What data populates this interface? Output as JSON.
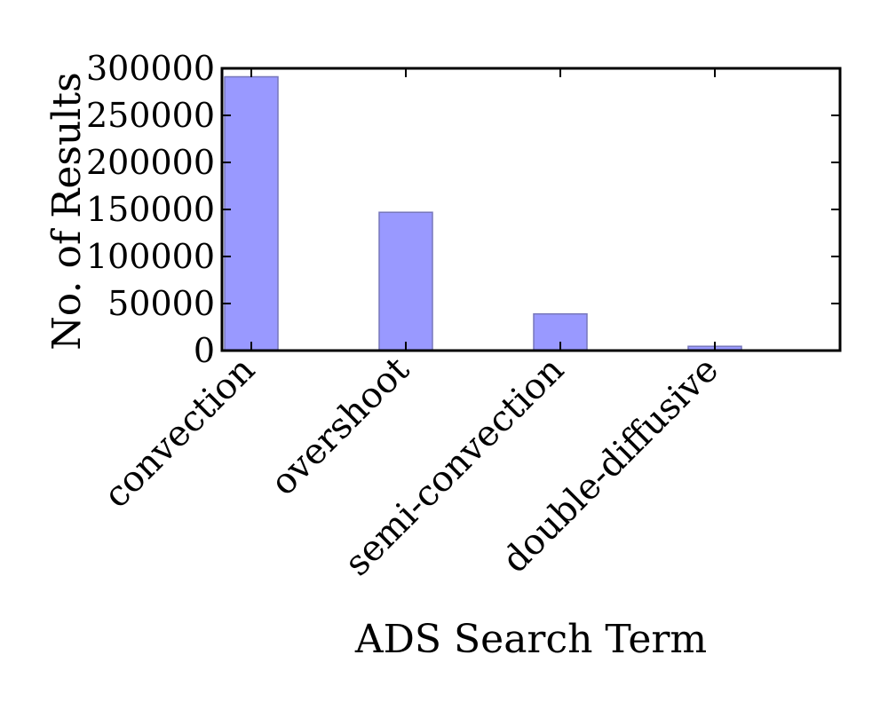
{
  "chart_data": {
    "type": "bar",
    "title": "",
    "xlabel": "ADS Search Term",
    "ylabel": "No. of Results",
    "categories": [
      "convection",
      "overshoot",
      "semi-convection",
      "double-diffusive"
    ],
    "values": [
      291000,
      147000,
      39000,
      4500
    ],
    "ylim": [
      0,
      300000
    ],
    "yticks": [
      0,
      50000,
      100000,
      150000,
      200000,
      250000,
      300000
    ],
    "ytick_labels": [
      "0",
      "50000",
      "100000",
      "150000",
      "200000",
      "250000",
      "300000"
    ],
    "grid": false,
    "legend": "none",
    "bar_color": "#9999ff",
    "bar_edge_color": "#7777bb"
  }
}
